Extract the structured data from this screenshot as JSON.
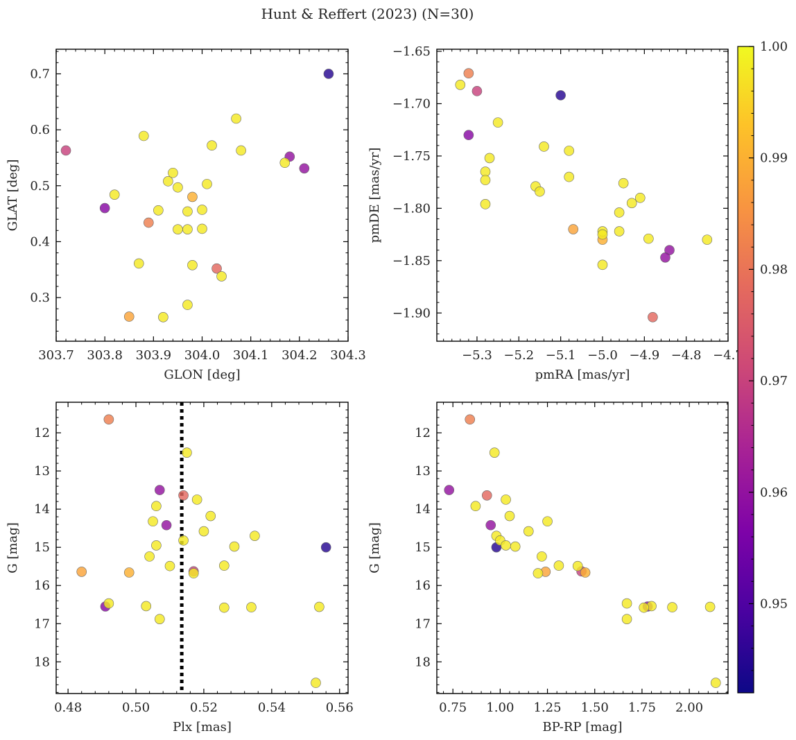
{
  "chart_data": {
    "title": "Hunt & Reffert (2023) (N=30)",
    "colorbar": {
      "colormap": "plasma",
      "range": [
        0.942,
        1.0
      ],
      "ticks": [
        0.95,
        0.96,
        0.97,
        0.98,
        0.99,
        1.0
      ],
      "tick_labels": [
        "0.95",
        "0.96",
        "0.97",
        "0.98",
        "0.99",
        "1.00"
      ]
    },
    "stars": [
      {
        "glon": 304.26,
        "glat": 0.7,
        "pmra": -5.1,
        "pmde": -1.692,
        "plx": 0.556,
        "g": 15.0,
        "bprp": 0.98,
        "prob": 0.945
      },
      {
        "glon": 303.72,
        "glat": 0.563,
        "pmra": -5.3,
        "pmde": -1.688,
        "plx": 0.517,
        "g": 15.63,
        "bprp": 1.43,
        "prob": 0.97
      },
      {
        "glon": 303.8,
        "glat": 0.46,
        "pmra": -5.32,
        "pmde": -1.73,
        "plx": 0.491,
        "g": 16.55,
        "bprp": 1.78,
        "prob": 0.958
      },
      {
        "glon": 304.18,
        "glat": 0.552,
        "pmra": -4.84,
        "pmde": -1.84,
        "plx": 0.507,
        "g": 13.5,
        "bprp": 0.73,
        "prob": 0.96
      },
      {
        "glon": 304.21,
        "glat": 0.531,
        "pmra": -4.85,
        "pmde": -1.847,
        "plx": 0.509,
        "g": 14.42,
        "bprp": 0.95,
        "prob": 0.96
      },
      {
        "glon": 303.89,
        "glat": 0.434,
        "pmra": -5.32,
        "pmde": -1.671,
        "plx": 0.492,
        "g": 11.65,
        "bprp": 0.84,
        "prob": 0.982
      },
      {
        "glon": 304.03,
        "glat": 0.352,
        "pmra": -4.88,
        "pmde": -1.904,
        "plx": 0.514,
        "g": 13.64,
        "bprp": 0.93,
        "prob": 0.978
      },
      {
        "glon": 303.85,
        "glat": 0.266,
        "pmra": -5.07,
        "pmde": -1.82,
        "plx": 0.484,
        "g": 15.64,
        "bprp": 1.24,
        "prob": 0.988
      },
      {
        "glon": 303.98,
        "glat": 0.48,
        "pmra": -5.0,
        "pmde": -1.83,
        "plx": 0.498,
        "g": 15.66,
        "bprp": 1.45,
        "prob": 0.99
      },
      {
        "glon": 303.82,
        "glat": 0.484,
        "pmra": -5.34,
        "pmde": -1.682,
        "plx": 0.515,
        "g": 12.52,
        "bprp": 0.97,
        "prob": 0.998
      },
      {
        "glon": 303.88,
        "glat": 0.589,
        "pmra": -5.25,
        "pmde": -1.718,
        "plx": 0.518,
        "g": 13.75,
        "bprp": 1.03,
        "prob": 0.998
      },
      {
        "glon": 304.07,
        "glat": 0.62,
        "pmra": -5.27,
        "pmde": -1.752,
        "plx": 0.506,
        "g": 13.92,
        "bprp": 0.87,
        "prob": 0.998
      },
      {
        "glon": 304.02,
        "glat": 0.572,
        "pmra": -5.28,
        "pmde": -1.765,
        "plx": 0.522,
        "g": 14.18,
        "bprp": 1.05,
        "prob": 0.998
      },
      {
        "glon": 304.08,
        "glat": 0.563,
        "pmra": -5.28,
        "pmde": -1.773,
        "plx": 0.505,
        "g": 14.32,
        "bprp": 1.25,
        "prob": 0.998
      },
      {
        "glon": 304.17,
        "glat": 0.541,
        "pmra": -5.28,
        "pmde": -1.796,
        "plx": 0.52,
        "g": 14.58,
        "bprp": 1.15,
        "prob": 0.998
      },
      {
        "glon": 303.94,
        "glat": 0.523,
        "pmra": -5.14,
        "pmde": -1.741,
        "plx": 0.535,
        "g": 14.7,
        "bprp": 0.98,
        "prob": 0.998
      },
      {
        "glon": 303.93,
        "glat": 0.508,
        "pmra": -5.08,
        "pmde": -1.745,
        "plx": 0.514,
        "g": 14.82,
        "bprp": 1.0,
        "prob": 0.998
      },
      {
        "glon": 304.01,
        "glat": 0.503,
        "pmra": -5.08,
        "pmde": -1.77,
        "plx": 0.506,
        "g": 14.95,
        "bprp": 1.03,
        "prob": 0.998
      },
      {
        "glon": 303.95,
        "glat": 0.497,
        "pmra": -5.16,
        "pmde": -1.779,
        "plx": 0.529,
        "g": 14.98,
        "bprp": 1.08,
        "prob": 0.998
      },
      {
        "glon": 303.97,
        "glat": 0.454,
        "pmra": -5.15,
        "pmde": -1.784,
        "plx": 0.504,
        "g": 15.24,
        "bprp": 1.22,
        "prob": 0.998
      },
      {
        "glon": 303.91,
        "glat": 0.456,
        "pmra": -4.95,
        "pmde": -1.776,
        "plx": 0.526,
        "g": 15.48,
        "bprp": 1.31,
        "prob": 0.998
      },
      {
        "glon": 304.0,
        "glat": 0.457,
        "pmra": -4.93,
        "pmde": -1.795,
        "plx": 0.51,
        "g": 15.49,
        "bprp": 1.41,
        "prob": 0.998
      },
      {
        "glon": 303.95,
        "glat": 0.422,
        "pmra": -4.96,
        "pmde": -1.804,
        "plx": 0.517,
        "g": 15.68,
        "bprp": 1.2,
        "prob": 0.998
      },
      {
        "glon": 303.97,
        "glat": 0.422,
        "pmra": -4.91,
        "pmde": -1.79,
        "plx": 0.492,
        "g": 16.47,
        "bprp": 1.67,
        "prob": 0.998
      },
      {
        "glon": 304.0,
        "glat": 0.423,
        "pmra": -5.0,
        "pmde": -1.822,
        "plx": 0.503,
        "g": 16.54,
        "bprp": 1.8,
        "prob": 0.998
      },
      {
        "glon": 303.87,
        "glat": 0.361,
        "pmra": -4.96,
        "pmde": -1.822,
        "plx": 0.526,
        "g": 16.58,
        "bprp": 1.76,
        "prob": 0.998
      },
      {
        "glon": 303.98,
        "glat": 0.358,
        "pmra": -5.0,
        "pmde": -1.825,
        "plx": 0.534,
        "g": 16.57,
        "bprp": 1.91,
        "prob": 0.998
      },
      {
        "glon": 304.04,
        "glat": 0.338,
        "pmra": -4.89,
        "pmde": -1.829,
        "plx": 0.554,
        "g": 16.56,
        "bprp": 2.11,
        "prob": 0.998
      },
      {
        "glon": 303.97,
        "glat": 0.287,
        "pmra": -4.75,
        "pmde": -1.83,
        "plx": 0.507,
        "g": 16.88,
        "bprp": 1.67,
        "prob": 0.998
      },
      {
        "glon": 303.92,
        "glat": 0.265,
        "pmra": -5.0,
        "pmde": -1.854,
        "plx": 0.553,
        "g": 18.55,
        "bprp": 2.14,
        "prob": 0.998
      }
    ],
    "panels": [
      {
        "type": "scatter",
        "xkey": "glon",
        "ykey": "glat",
        "xlabel": "GLON [deg]",
        "ylabel": "GLAT [deg]",
        "xlim": [
          303.7,
          304.3
        ],
        "ylim": [
          0.222,
          0.744
        ],
        "yinvert": false,
        "xticks": [
          303.7,
          303.8,
          303.9,
          304.0,
          304.1,
          304.2,
          304.3
        ],
        "xtick_labels": [
          "303.7",
          "303.8",
          "303.9",
          "304.0",
          "304.1",
          "304.2",
          "304.3"
        ],
        "yticks": [
          0.3,
          0.4,
          0.5,
          0.6,
          0.7
        ],
        "ytick_labels": [
          "0.3",
          "0.4",
          "0.5",
          "0.6",
          "0.7"
        ],
        "xminor": 0.02,
        "yminor": 0.02
      },
      {
        "type": "scatter",
        "xkey": "pmra",
        "ykey": "pmde",
        "xlabel": "pmRA [mas/yr]",
        "ylabel": "pmDE [mas/yr]",
        "xlim": [
          -5.396,
          -4.7
        ],
        "ylim": [
          -1.927,
          -1.648
        ],
        "yinvert": false,
        "xticks": [
          -5.3,
          -5.2,
          -5.1,
          -5.0,
          -4.9,
          -4.8,
          -4.7
        ],
        "xtick_labels": [
          "−5.3",
          "−5.2",
          "−5.1",
          "−5.0",
          "−4.9",
          "−4.8",
          "−4.7"
        ],
        "yticks": [
          -1.9,
          -1.85,
          -1.8,
          -1.75,
          -1.7,
          -1.65
        ],
        "ytick_labels": [
          "−1.90",
          "−1.85",
          "−1.80",
          "−1.75",
          "−1.70",
          "−1.65"
        ],
        "xminor": 0.02,
        "yminor": 0.01
      },
      {
        "type": "scatter",
        "xkey": "plx",
        "ykey": "g",
        "xlabel": "Plx [mas]",
        "ylabel": "G [mag]",
        "xlim": [
          0.4765,
          0.5625
        ],
        "ylim": [
          11.2,
          18.83
        ],
        "yinvert": true,
        "xticks": [
          0.48,
          0.5,
          0.52,
          0.54,
          0.56
        ],
        "xtick_labels": [
          "0.48",
          "0.50",
          "0.52",
          "0.54",
          "0.56"
        ],
        "yticks": [
          12,
          13,
          14,
          15,
          16,
          17,
          18
        ],
        "ytick_labels": [
          "12",
          "13",
          "14",
          "15",
          "16",
          "17",
          "18"
        ],
        "xminor": 0.004,
        "yminor": 0.2,
        "vline": 0.5135
      },
      {
        "type": "scatter",
        "xkey": "bprp",
        "ykey": "g",
        "xlabel": "BP-RP [mag]",
        "ylabel": "G [mag]",
        "xlim": [
          0.665,
          2.205
        ],
        "ylim": [
          11.2,
          18.83
        ],
        "yinvert": true,
        "xticks": [
          0.75,
          1.0,
          1.25,
          1.5,
          1.75,
          2.0
        ],
        "xtick_labels": [
          "0.75",
          "1.00",
          "1.25",
          "1.50",
          "1.75",
          "2.00"
        ],
        "yticks": [
          12,
          13,
          14,
          15,
          16,
          17,
          18
        ],
        "ytick_labels": [
          "12",
          "13",
          "14",
          "15",
          "16",
          "17",
          "18"
        ],
        "xminor": 0.05,
        "yminor": 0.2
      }
    ]
  }
}
